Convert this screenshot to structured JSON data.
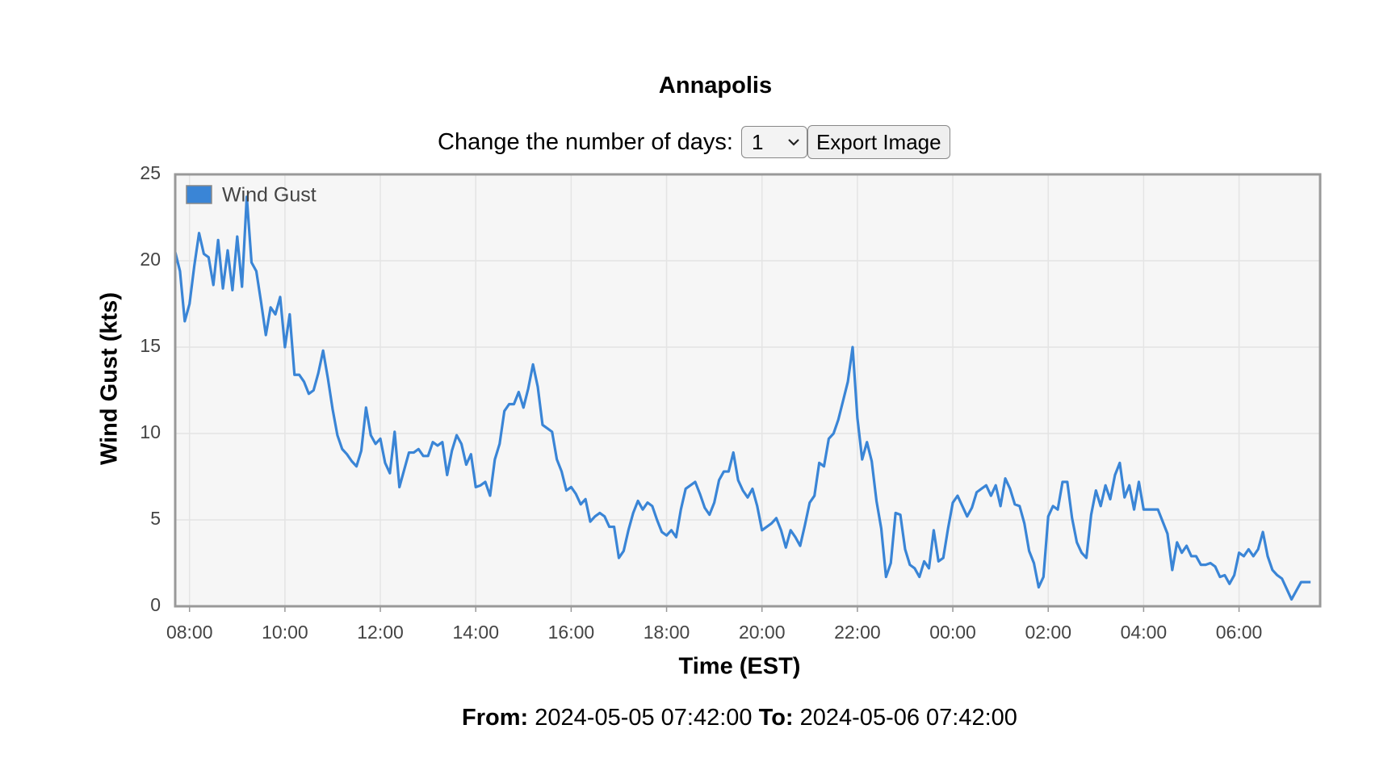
{
  "page": {
    "title": "Annapolis",
    "controls": {
      "days_label": "Change the number of days:",
      "days_value": "1",
      "export_button": "Export Image"
    },
    "range": {
      "from_label": "From:",
      "from": "2024-05-05 07:42:00",
      "to_label": "To:",
      "to": "2024-05-06 07:42:00"
    }
  },
  "chart_data": {
    "type": "line",
    "x_label": "Time (EST)",
    "y_label": "Wind Gust (kts)",
    "xlim": [
      7.7,
      31.7
    ],
    "ylim": [
      0,
      25
    ],
    "xticks": [
      {
        "value": 8,
        "label": "08:00"
      },
      {
        "value": 10,
        "label": "10:00"
      },
      {
        "value": 12,
        "label": "12:00"
      },
      {
        "value": 14,
        "label": "14:00"
      },
      {
        "value": 16,
        "label": "16:00"
      },
      {
        "value": 18,
        "label": "18:00"
      },
      {
        "value": 20,
        "label": "20:00"
      },
      {
        "value": 22,
        "label": "22:00"
      },
      {
        "value": 24,
        "label": "00:00"
      },
      {
        "value": 26,
        "label": "02:00"
      },
      {
        "value": 28,
        "label": "04:00"
      },
      {
        "value": 30,
        "label": "06:00"
      }
    ],
    "yticks": [
      0,
      5,
      10,
      15,
      20,
      25
    ],
    "grid": true,
    "legend": "top-left",
    "x": [
      7.7,
      7.8,
      7.9,
      8,
      8.1,
      8.2,
      8.3,
      8.4,
      8.5,
      8.6,
      8.7,
      8.8,
      8.9,
      9,
      9.1,
      9.2,
      9.3,
      9.4,
      9.5,
      9.6,
      9.7,
      9.8,
      9.9,
      10,
      10.1,
      10.2,
      10.3,
      10.4,
      10.5,
      10.6,
      10.7,
      10.8,
      10.9,
      11,
      11.1,
      11.2,
      11.3,
      11.4,
      11.5,
      11.6,
      11.7,
      11.8,
      11.9,
      12,
      12.1,
      12.2,
      12.3,
      12.4,
      12.5,
      12.6,
      12.7,
      12.8,
      12.9,
      13,
      13.1,
      13.2,
      13.3,
      13.4,
      13.5,
      13.6,
      13.7,
      13.8,
      13.9,
      14,
      14.1,
      14.2,
      14.3,
      14.4,
      14.5,
      14.6,
      14.7,
      14.8,
      14.9,
      15,
      15.1,
      15.2,
      15.3,
      15.4,
      15.5,
      15.6,
      15.7,
      15.8,
      15.9,
      16,
      16.1,
      16.2,
      16.3,
      16.4,
      16.5,
      16.6,
      16.7,
      16.8,
      16.9,
      17,
      17.1,
      17.2,
      17.3,
      17.4,
      17.5,
      17.6,
      17.7,
      17.8,
      17.9,
      18,
      18.1,
      18.2,
      18.3,
      18.4,
      18.5,
      18.6,
      18.7,
      18.8,
      18.9,
      19,
      19.1,
      19.2,
      19.3,
      19.4,
      19.5,
      19.6,
      19.7,
      19.8,
      19.9,
      20,
      20.1,
      20.2,
      20.3,
      20.4,
      20.5,
      20.6,
      20.7,
      20.8,
      20.9,
      21,
      21.1,
      21.2,
      21.3,
      21.4,
      21.5,
      21.6,
      21.7,
      21.8,
      21.9,
      22,
      22.1,
      22.2,
      22.3,
      22.4,
      22.5,
      22.6,
      22.7,
      22.8,
      22.9,
      23,
      23.1,
      23.2,
      23.3,
      23.4,
      23.5,
      23.6,
      23.7,
      23.8,
      23.9,
      24,
      24.1,
      24.2,
      24.3,
      24.4,
      24.5,
      24.6,
      24.7,
      24.8,
      24.9,
      25,
      25.1,
      25.2,
      25.3,
      25.4,
      25.5,
      25.6,
      25.7,
      25.8,
      25.9,
      26,
      26.1,
      26.2,
      26.3,
      26.4,
      26.5,
      26.6,
      26.7,
      26.8,
      26.9,
      27,
      27.1,
      27.2,
      27.3,
      27.4,
      27.5,
      27.6,
      27.7,
      27.8,
      27.9,
      28,
      28.1,
      28.2,
      28.3,
      28.4,
      28.5,
      28.6,
      28.7,
      28.8,
      28.9,
      29,
      29.1,
      29.2,
      29.3,
      29.4,
      29.5,
      29.6,
      29.7,
      29.8,
      29.9,
      30,
      30.1,
      30.2,
      30.3,
      30.4,
      30.5,
      30.6,
      30.7,
      30.8,
      30.9,
      31,
      31.1,
      31.2,
      31.3,
      31.4,
      31.5
    ],
    "series": [
      {
        "name": "Wind Gust",
        "color": "#3a85d6",
        "values": [
          20.5,
          19.4,
          16.5,
          17.5,
          19.7,
          21.6,
          20.4,
          20.2,
          18.6,
          21.2,
          18.4,
          20.6,
          18.3,
          21.4,
          18.5,
          23.7,
          19.9,
          19.4,
          17.6,
          15.7,
          17.3,
          16.9,
          17.9,
          15.0,
          16.9,
          13.4,
          13.4,
          13.0,
          12.3,
          12.5,
          13.5,
          14.8,
          13.2,
          11.4,
          9.9,
          9.1,
          8.8,
          8.4,
          8.1,
          9.0,
          11.5,
          9.9,
          9.4,
          9.7,
          8.3,
          7.7,
          10.1,
          6.9,
          7.9,
          8.9,
          8.9,
          9.1,
          8.7,
          8.7,
          9.5,
          9.3,
          9.5,
          7.6,
          9.0,
          9.9,
          9.4,
          8.2,
          8.8,
          6.9,
          7.0,
          7.2,
          6.4,
          8.5,
          9.4,
          11.3,
          11.7,
          11.7,
          12.4,
          11.5,
          12.6,
          14.0,
          12.7,
          10.5,
          10.3,
          10.1,
          8.5,
          7.8,
          6.7,
          6.9,
          6.5,
          5.9,
          6.2,
          4.9,
          5.2,
          5.4,
          5.2,
          4.6,
          4.6,
          2.8,
          3.2,
          4.4,
          5.4,
          6.1,
          5.6,
          6.0,
          5.8,
          5.0,
          4.3,
          4.1,
          4.4,
          4.0,
          5.6,
          6.8,
          7.0,
          7.2,
          6.5,
          5.7,
          5.3,
          6.0,
          7.3,
          7.8,
          7.8,
          8.9,
          7.3,
          6.7,
          6.3,
          6.8,
          5.8,
          4.4,
          4.6,
          4.8,
          5.1,
          4.4,
          3.4,
          4.4,
          4.0,
          3.5,
          4.7,
          6.0,
          6.4,
          8.3,
          8.1,
          9.7,
          10.0,
          10.8,
          11.9,
          13.0,
          15.0,
          10.9,
          8.5,
          9.5,
          8.4,
          6.1,
          4.5,
          1.7,
          2.5,
          5.4,
          5.3,
          3.3,
          2.4,
          2.2,
          1.7,
          2.6,
          2.2,
          4.4,
          2.6,
          2.8,
          4.5,
          6.0,
          6.4,
          5.8,
          5.2,
          5.7,
          6.6,
          6.8,
          7.0,
          6.4,
          7.0,
          5.8,
          7.4,
          6.8,
          5.9,
          5.8,
          4.8,
          3.2,
          2.5,
          1.1,
          1.7,
          5.2,
          5.8,
          5.6,
          7.2,
          7.2,
          5.1,
          3.7,
          3.1,
          2.8,
          5.3,
          6.7,
          5.8,
          7.0,
          6.2,
          7.6,
          8.3,
          6.3,
          7.0,
          5.6,
          7.2,
          5.6,
          5.6,
          5.6,
          5.6,
          4.9,
          4.2,
          2.1,
          3.7,
          3.1,
          3.5,
          2.9,
          2.9,
          2.4,
          2.4,
          2.5,
          2.3,
          1.7,
          1.8,
          1.3,
          1.8,
          3.1,
          2.9,
          3.3,
          2.9,
          3.3,
          4.3,
          2.9,
          2.1,
          1.8,
          1.6,
          1.0,
          0.4,
          0.9,
          1.4,
          1.4,
          1.4
        ]
      }
    ]
  }
}
